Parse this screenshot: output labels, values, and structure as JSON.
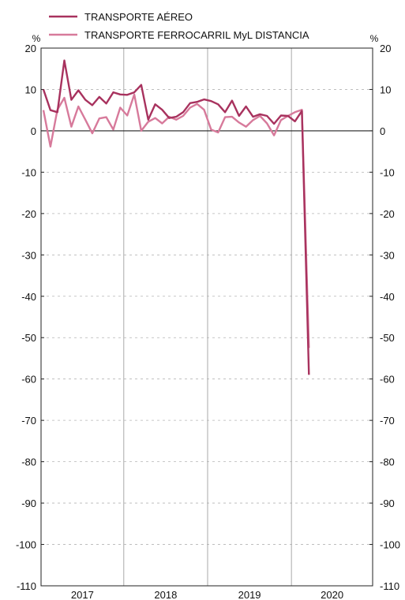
{
  "chart_data": {
    "type": "line",
    "title": "",
    "xlabel": "",
    "ylabel_left": "%",
    "ylabel_right": "%",
    "ylim": [
      -110,
      20
    ],
    "yticks": [
      20,
      10,
      0,
      -10,
      -20,
      -30,
      -40,
      -50,
      -60,
      -70,
      -80,
      -90,
      -100,
      -110
    ],
    "year_labels": [
      "2017",
      "2018",
      "2019",
      "2020"
    ],
    "legend_position": "top-left",
    "grid": "horizontal dashed, vertical year separators",
    "x_start": "2017-01",
    "series": [
      {
        "name": "TRANSPORTE AÉREO",
        "color": "#a8325e",
        "values": [
          10.0,
          5.0,
          4.5,
          17.0,
          7.5,
          9.8,
          7.5,
          6.2,
          8.2,
          6.6,
          9.3,
          8.8,
          8.7,
          9.3,
          11.1,
          2.7,
          6.4,
          5.1,
          3.1,
          3.4,
          4.5,
          6.7,
          7.0,
          7.6,
          7.2,
          6.4,
          4.5,
          7.3,
          3.6,
          5.9,
          3.4,
          4.0,
          3.6,
          1.7,
          3.7,
          3.6,
          2.3,
          4.8,
          -59.0
        ]
      },
      {
        "name": "TRANSPORTE FERROCARRIL MyL DISTANCIA",
        "color": "#d77a9b",
        "values": [
          5.0,
          -3.8,
          5.1,
          8.0,
          1.0,
          5.9,
          2.7,
          -0.6,
          3.0,
          3.3,
          0.3,
          5.6,
          3.7,
          8.8,
          0.0,
          2.2,
          3.1,
          1.8,
          3.4,
          2.7,
          3.6,
          5.6,
          6.5,
          5.1,
          0.3,
          -0.4,
          3.3,
          3.4,
          2.0,
          1.0,
          2.6,
          3.6,
          1.8,
          -1.1,
          2.6,
          3.6,
          4.5,
          5.1,
          -52.5
        ]
      }
    ]
  }
}
